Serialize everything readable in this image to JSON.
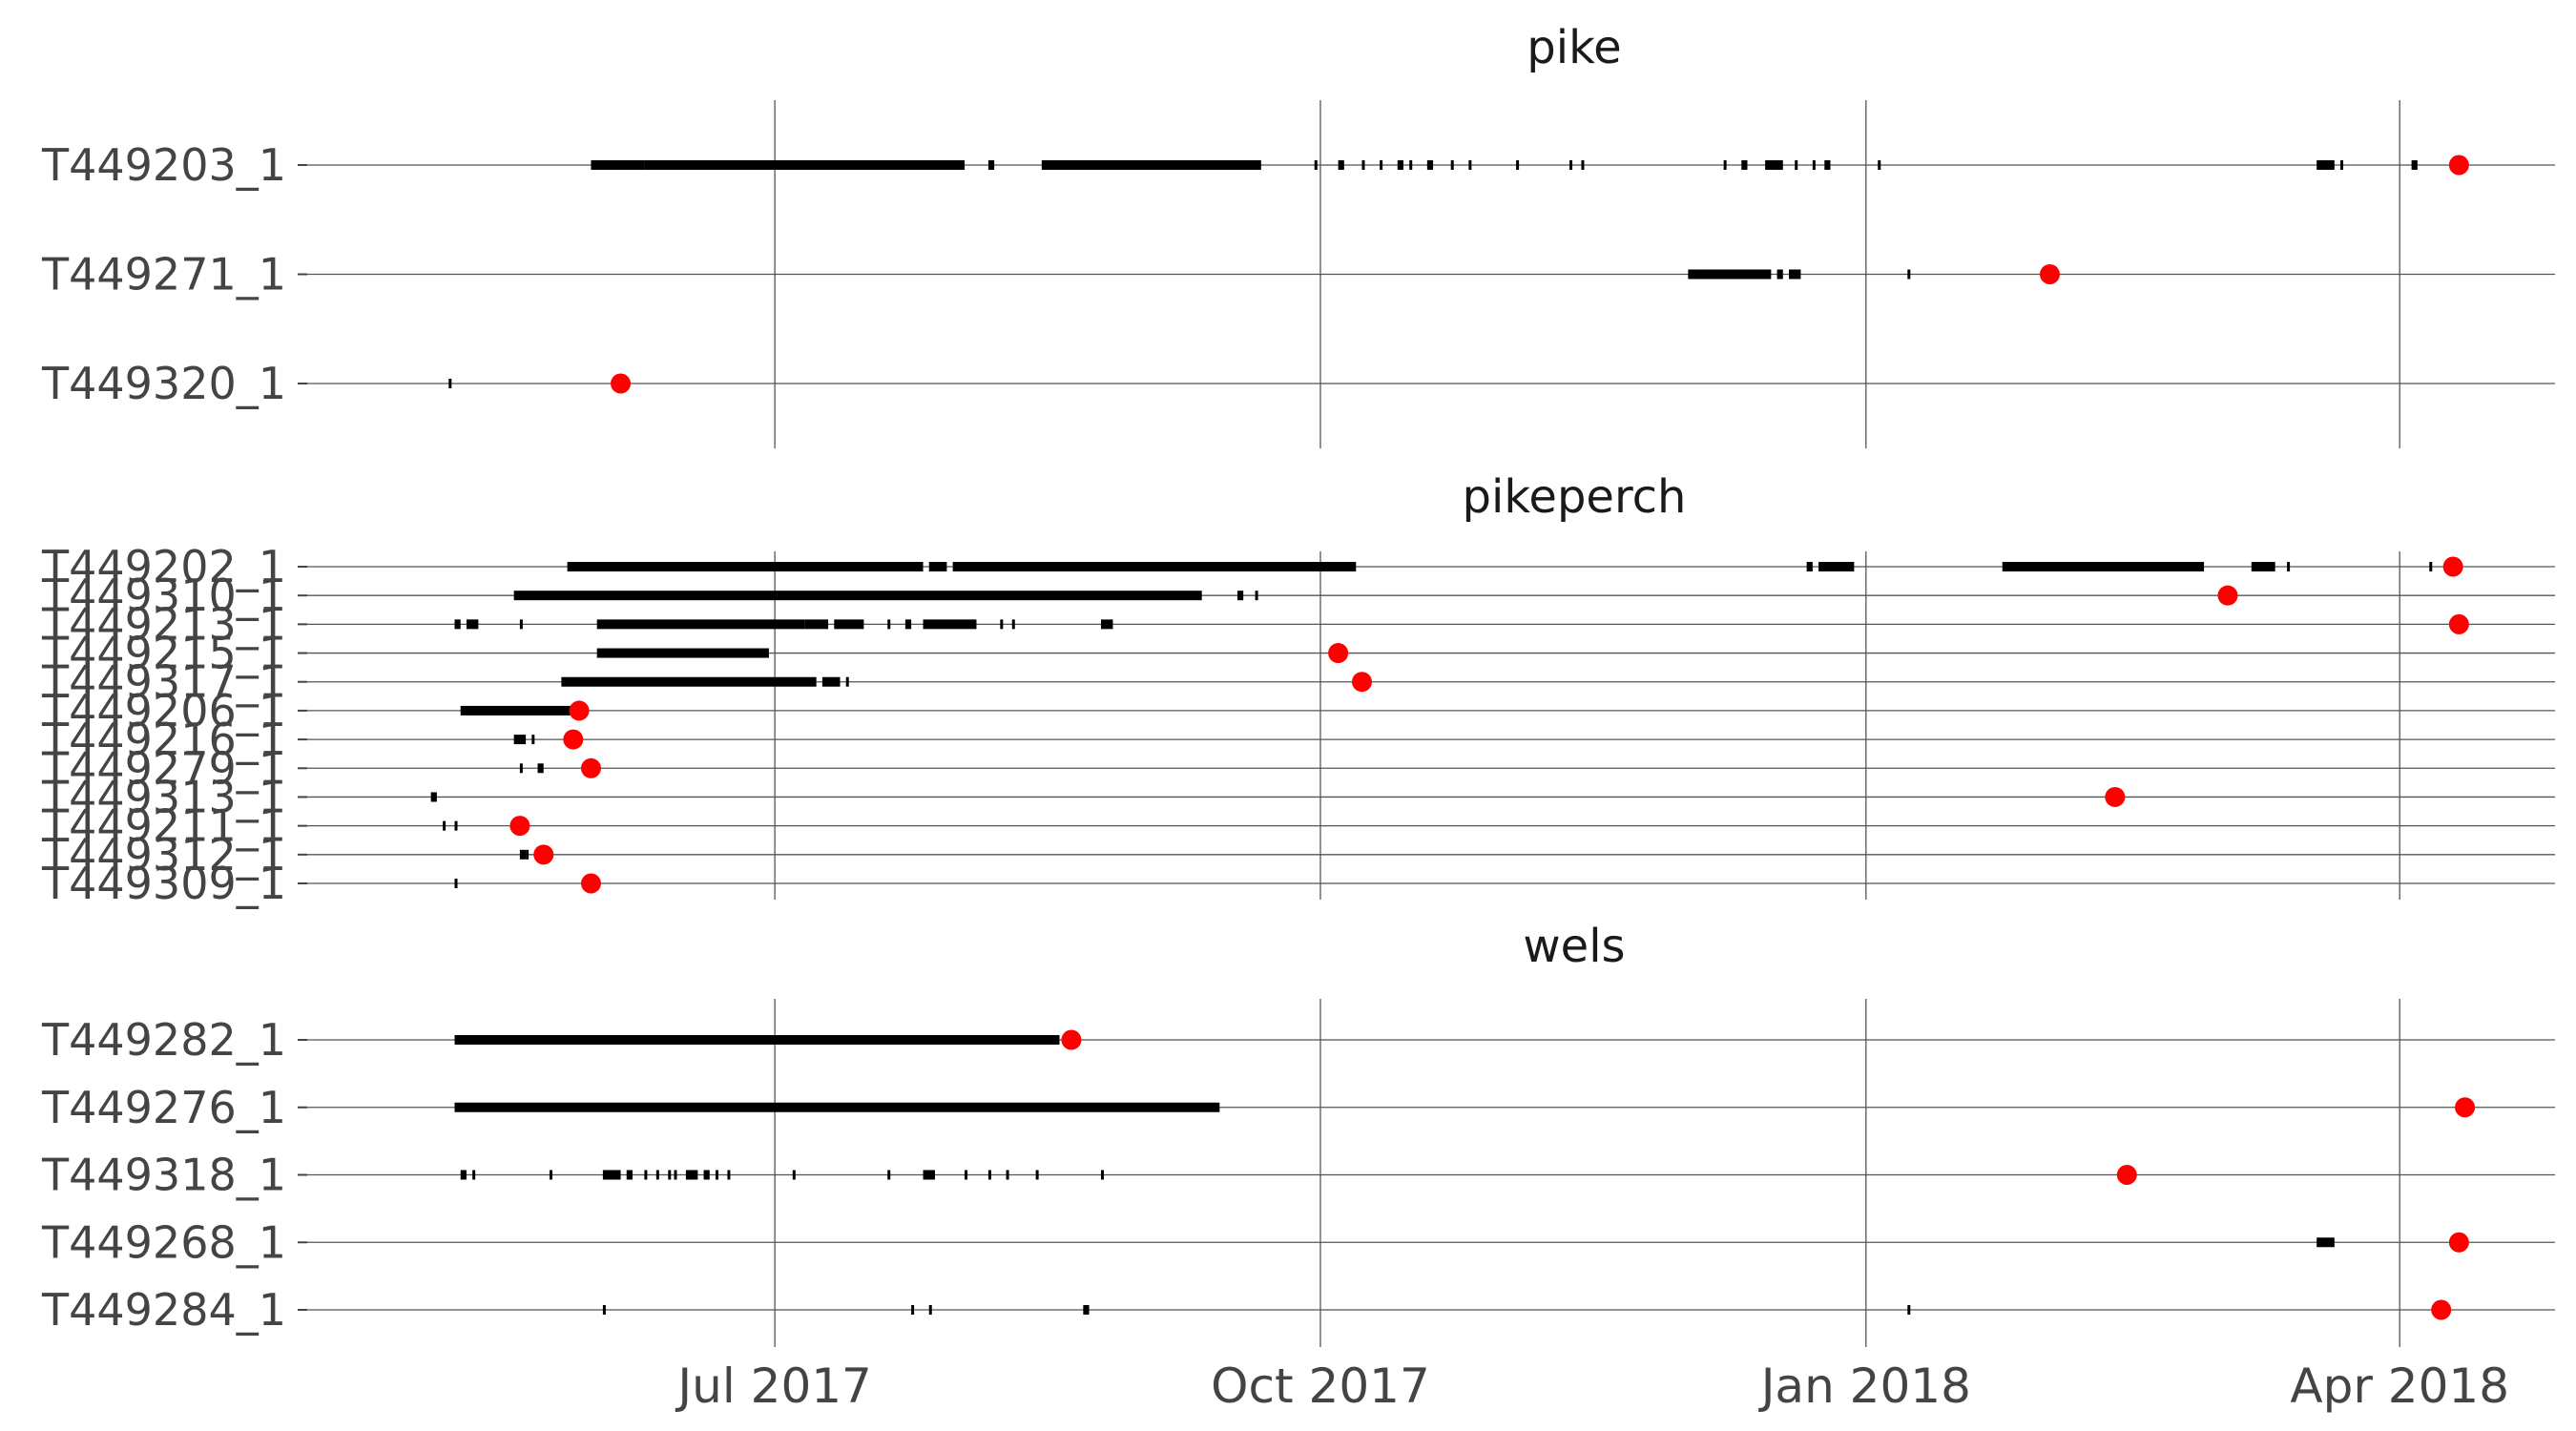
{
  "chart_data": {
    "type": "scatter",
    "x_tick_labels": [
      "Jul 2017",
      "Oct 2017",
      "Jan 2018",
      "Apr 2018"
    ],
    "x_ticks": [
      "2017-07-01",
      "2017-10-01",
      "2018-01-01",
      "2018-04-01"
    ],
    "xlim": [
      "2017-04-22",
      "2018-04-30"
    ],
    "grid": true,
    "marker_color": "#ff0000",
    "detection_color": "#000000",
    "panels": [
      {
        "title": "pike",
        "tags": [
          {
            "name": "T449203_1",
            "marker": "2018-04-11",
            "detections": [
              [
                "2017-05-31",
                "2017-06-09"
              ],
              [
                "2017-06-09",
                "2017-08-02"
              ],
              [
                "2017-08-06",
                "2017-08-07"
              ],
              [
                "2017-08-15",
                "2017-09-21"
              ],
              [
                "2017-09-30",
                "2017-09-30"
              ],
              [
                "2017-10-04",
                "2017-10-05"
              ],
              [
                "2017-10-08",
                "2017-10-08"
              ],
              [
                "2017-10-11",
                "2017-10-11"
              ],
              [
                "2017-10-14",
                "2017-10-15"
              ],
              [
                "2017-10-16",
                "2017-10-16"
              ],
              [
                "2017-10-19",
                "2017-10-20"
              ],
              [
                "2017-10-23",
                "2017-10-23"
              ],
              [
                "2017-10-26",
                "2017-10-26"
              ],
              [
                "2017-11-03",
                "2017-11-03"
              ],
              [
                "2017-11-12",
                "2017-11-12"
              ],
              [
                "2017-11-14",
                "2017-11-14"
              ],
              [
                "2017-12-08",
                "2017-12-08"
              ],
              [
                "2017-12-11",
                "2017-12-12"
              ],
              [
                "2017-12-15",
                "2017-12-18"
              ],
              [
                "2017-12-20",
                "2017-12-20"
              ],
              [
                "2017-12-23",
                "2017-12-23"
              ],
              [
                "2017-12-25",
                "2017-12-26"
              ],
              [
                "2018-01-03",
                "2018-01-03"
              ],
              [
                "2018-03-18",
                "2018-03-21"
              ],
              [
                "2018-03-22",
                "2018-03-22"
              ],
              [
                "2018-04-03",
                "2018-04-04"
              ]
            ]
          },
          {
            "name": "T449271_1",
            "marker": "2018-02-01",
            "detections": [
              [
                "2017-12-02",
                "2017-12-05"
              ],
              [
                "2017-12-05",
                "2017-12-16"
              ],
              [
                "2017-12-17",
                "2017-12-18"
              ],
              [
                "2017-12-19",
                "2017-12-21"
              ],
              [
                "2018-01-08",
                "2018-01-08"
              ]
            ]
          },
          {
            "name": "T449320_1",
            "marker": "2017-06-05",
            "detections": [
              [
                "2017-05-07",
                "2017-05-07"
              ]
            ]
          }
        ]
      },
      {
        "title": "pikeperch",
        "tags": [
          {
            "name": "T449202_1",
            "marker": "2018-04-10",
            "detections": [
              [
                "2017-05-27",
                "2017-07-26"
              ],
              [
                "2017-07-27",
                "2017-07-30"
              ],
              [
                "2017-07-31",
                "2017-10-07"
              ],
              [
                "2017-12-22",
                "2017-12-23"
              ],
              [
                "2017-12-24",
                "2017-12-30"
              ],
              [
                "2018-01-24",
                "2018-02-27"
              ],
              [
                "2018-03-07",
                "2018-03-11"
              ],
              [
                "2018-03-13",
                "2018-03-13"
              ],
              [
                "2018-04-06",
                "2018-04-06"
              ]
            ]
          },
          {
            "name": "T449310_1",
            "marker": "2018-03-03",
            "detections": [
              [
                "2017-05-18",
                "2017-09-11"
              ],
              [
                "2017-09-17",
                "2017-09-18"
              ],
              [
                "2017-09-20",
                "2017-09-20"
              ]
            ]
          },
          {
            "name": "T449213_1",
            "marker": "2018-04-11",
            "detections": [
              [
                "2017-05-08",
                "2017-05-09"
              ],
              [
                "2017-05-10",
                "2017-05-12"
              ],
              [
                "2017-05-19",
                "2017-05-19"
              ],
              [
                "2017-06-01",
                "2017-07-06"
              ],
              [
                "2017-07-06",
                "2017-07-10"
              ],
              [
                "2017-07-11",
                "2017-07-16"
              ],
              [
                "2017-07-20",
                "2017-07-20"
              ],
              [
                "2017-07-23",
                "2017-07-24"
              ],
              [
                "2017-07-26",
                "2017-08-04"
              ],
              [
                "2017-08-08",
                "2017-08-08"
              ],
              [
                "2017-08-10",
                "2017-08-10"
              ],
              [
                "2017-08-25",
                "2017-08-27"
              ]
            ]
          },
          {
            "name": "T449215_1",
            "marker": "2017-10-04",
            "detections": [
              [
                "2017-06-01",
                "2017-06-30"
              ]
            ]
          },
          {
            "name": "T449317_1",
            "marker": "2017-10-08",
            "detections": [
              [
                "2017-05-26",
                "2017-07-08"
              ],
              [
                "2017-07-09",
                "2017-07-12"
              ],
              [
                "2017-07-13",
                "2017-07-13"
              ]
            ]
          },
          {
            "name": "T449206_1",
            "marker": "2017-05-29",
            "detections": [
              [
                "2017-05-09",
                "2017-05-28"
              ]
            ]
          },
          {
            "name": "T449216_1",
            "marker": "2017-05-28",
            "detections": [
              [
                "2017-05-18",
                "2017-05-20"
              ],
              [
                "2017-05-21",
                "2017-05-21"
              ]
            ]
          },
          {
            "name": "T449279_1",
            "marker": "2017-05-31",
            "detections": [
              [
                "2017-05-19",
                "2017-05-19"
              ],
              [
                "2017-05-22",
                "2017-05-23"
              ]
            ]
          },
          {
            "name": "T449313_1",
            "marker": "2018-02-12",
            "detections": [
              [
                "2017-05-04",
                "2017-05-05"
              ]
            ]
          },
          {
            "name": "T449211_1",
            "marker": "2017-05-19",
            "detections": [
              [
                "2017-05-06",
                "2017-05-06"
              ],
              [
                "2017-05-08",
                "2017-05-08"
              ]
            ]
          },
          {
            "name": "T449312_1",
            "marker": "2017-05-23",
            "detections": [
              [
                "2017-05-19",
                "2017-05-20"
              ],
              [
                "2017-05-20",
                "2017-05-20"
              ]
            ]
          },
          {
            "name": "T449309_1",
            "marker": "2017-05-31",
            "detections": [
              [
                "2017-05-08",
                "2017-05-08"
              ]
            ]
          }
        ]
      },
      {
        "title": "wels",
        "tags": [
          {
            "name": "T449282_1",
            "marker": "2017-08-20",
            "detections": [
              [
                "2017-05-08",
                "2017-08-18"
              ]
            ]
          },
          {
            "name": "T449276_1",
            "marker": "2018-04-12",
            "detections": [
              [
                "2017-05-08",
                "2017-09-14"
              ]
            ]
          },
          {
            "name": "T449318_1",
            "marker": "2018-02-14",
            "detections": [
              [
                "2017-05-09",
                "2017-05-10"
              ],
              [
                "2017-05-11",
                "2017-05-11"
              ],
              [
                "2017-05-24",
                "2017-05-24"
              ],
              [
                "2017-06-02",
                "2017-06-05"
              ],
              [
                "2017-06-06",
                "2017-06-07"
              ],
              [
                "2017-06-09",
                "2017-06-09"
              ],
              [
                "2017-06-11",
                "2017-06-11"
              ],
              [
                "2017-06-13",
                "2017-06-13"
              ],
              [
                "2017-06-14",
                "2017-06-14"
              ],
              [
                "2017-06-16",
                "2017-06-18"
              ],
              [
                "2017-06-19",
                "2017-06-20"
              ],
              [
                "2017-06-21",
                "2017-06-21"
              ],
              [
                "2017-06-23",
                "2017-06-23"
              ],
              [
                "2017-07-04",
                "2017-07-04"
              ],
              [
                "2017-07-20",
                "2017-07-20"
              ],
              [
                "2017-07-26",
                "2017-07-28"
              ],
              [
                "2017-08-02",
                "2017-08-02"
              ],
              [
                "2017-08-06",
                "2017-08-06"
              ],
              [
                "2017-08-09",
                "2017-08-09"
              ],
              [
                "2017-08-14",
                "2017-08-14"
              ],
              [
                "2017-08-25",
                "2017-08-25"
              ]
            ]
          },
          {
            "name": "T449268_1",
            "marker": "2018-04-11",
            "detections": [
              [
                "2018-03-18",
                "2018-03-21"
              ]
            ]
          },
          {
            "name": "T449284_1",
            "marker": "2018-04-08",
            "detections": [
              [
                "2017-06-02",
                "2017-06-02"
              ],
              [
                "2017-07-24",
                "2017-07-24"
              ],
              [
                "2017-07-27",
                "2017-07-27"
              ],
              [
                "2017-08-22",
                "2017-08-23"
              ],
              [
                "2018-01-08",
                "2018-01-08"
              ]
            ]
          }
        ]
      }
    ]
  }
}
